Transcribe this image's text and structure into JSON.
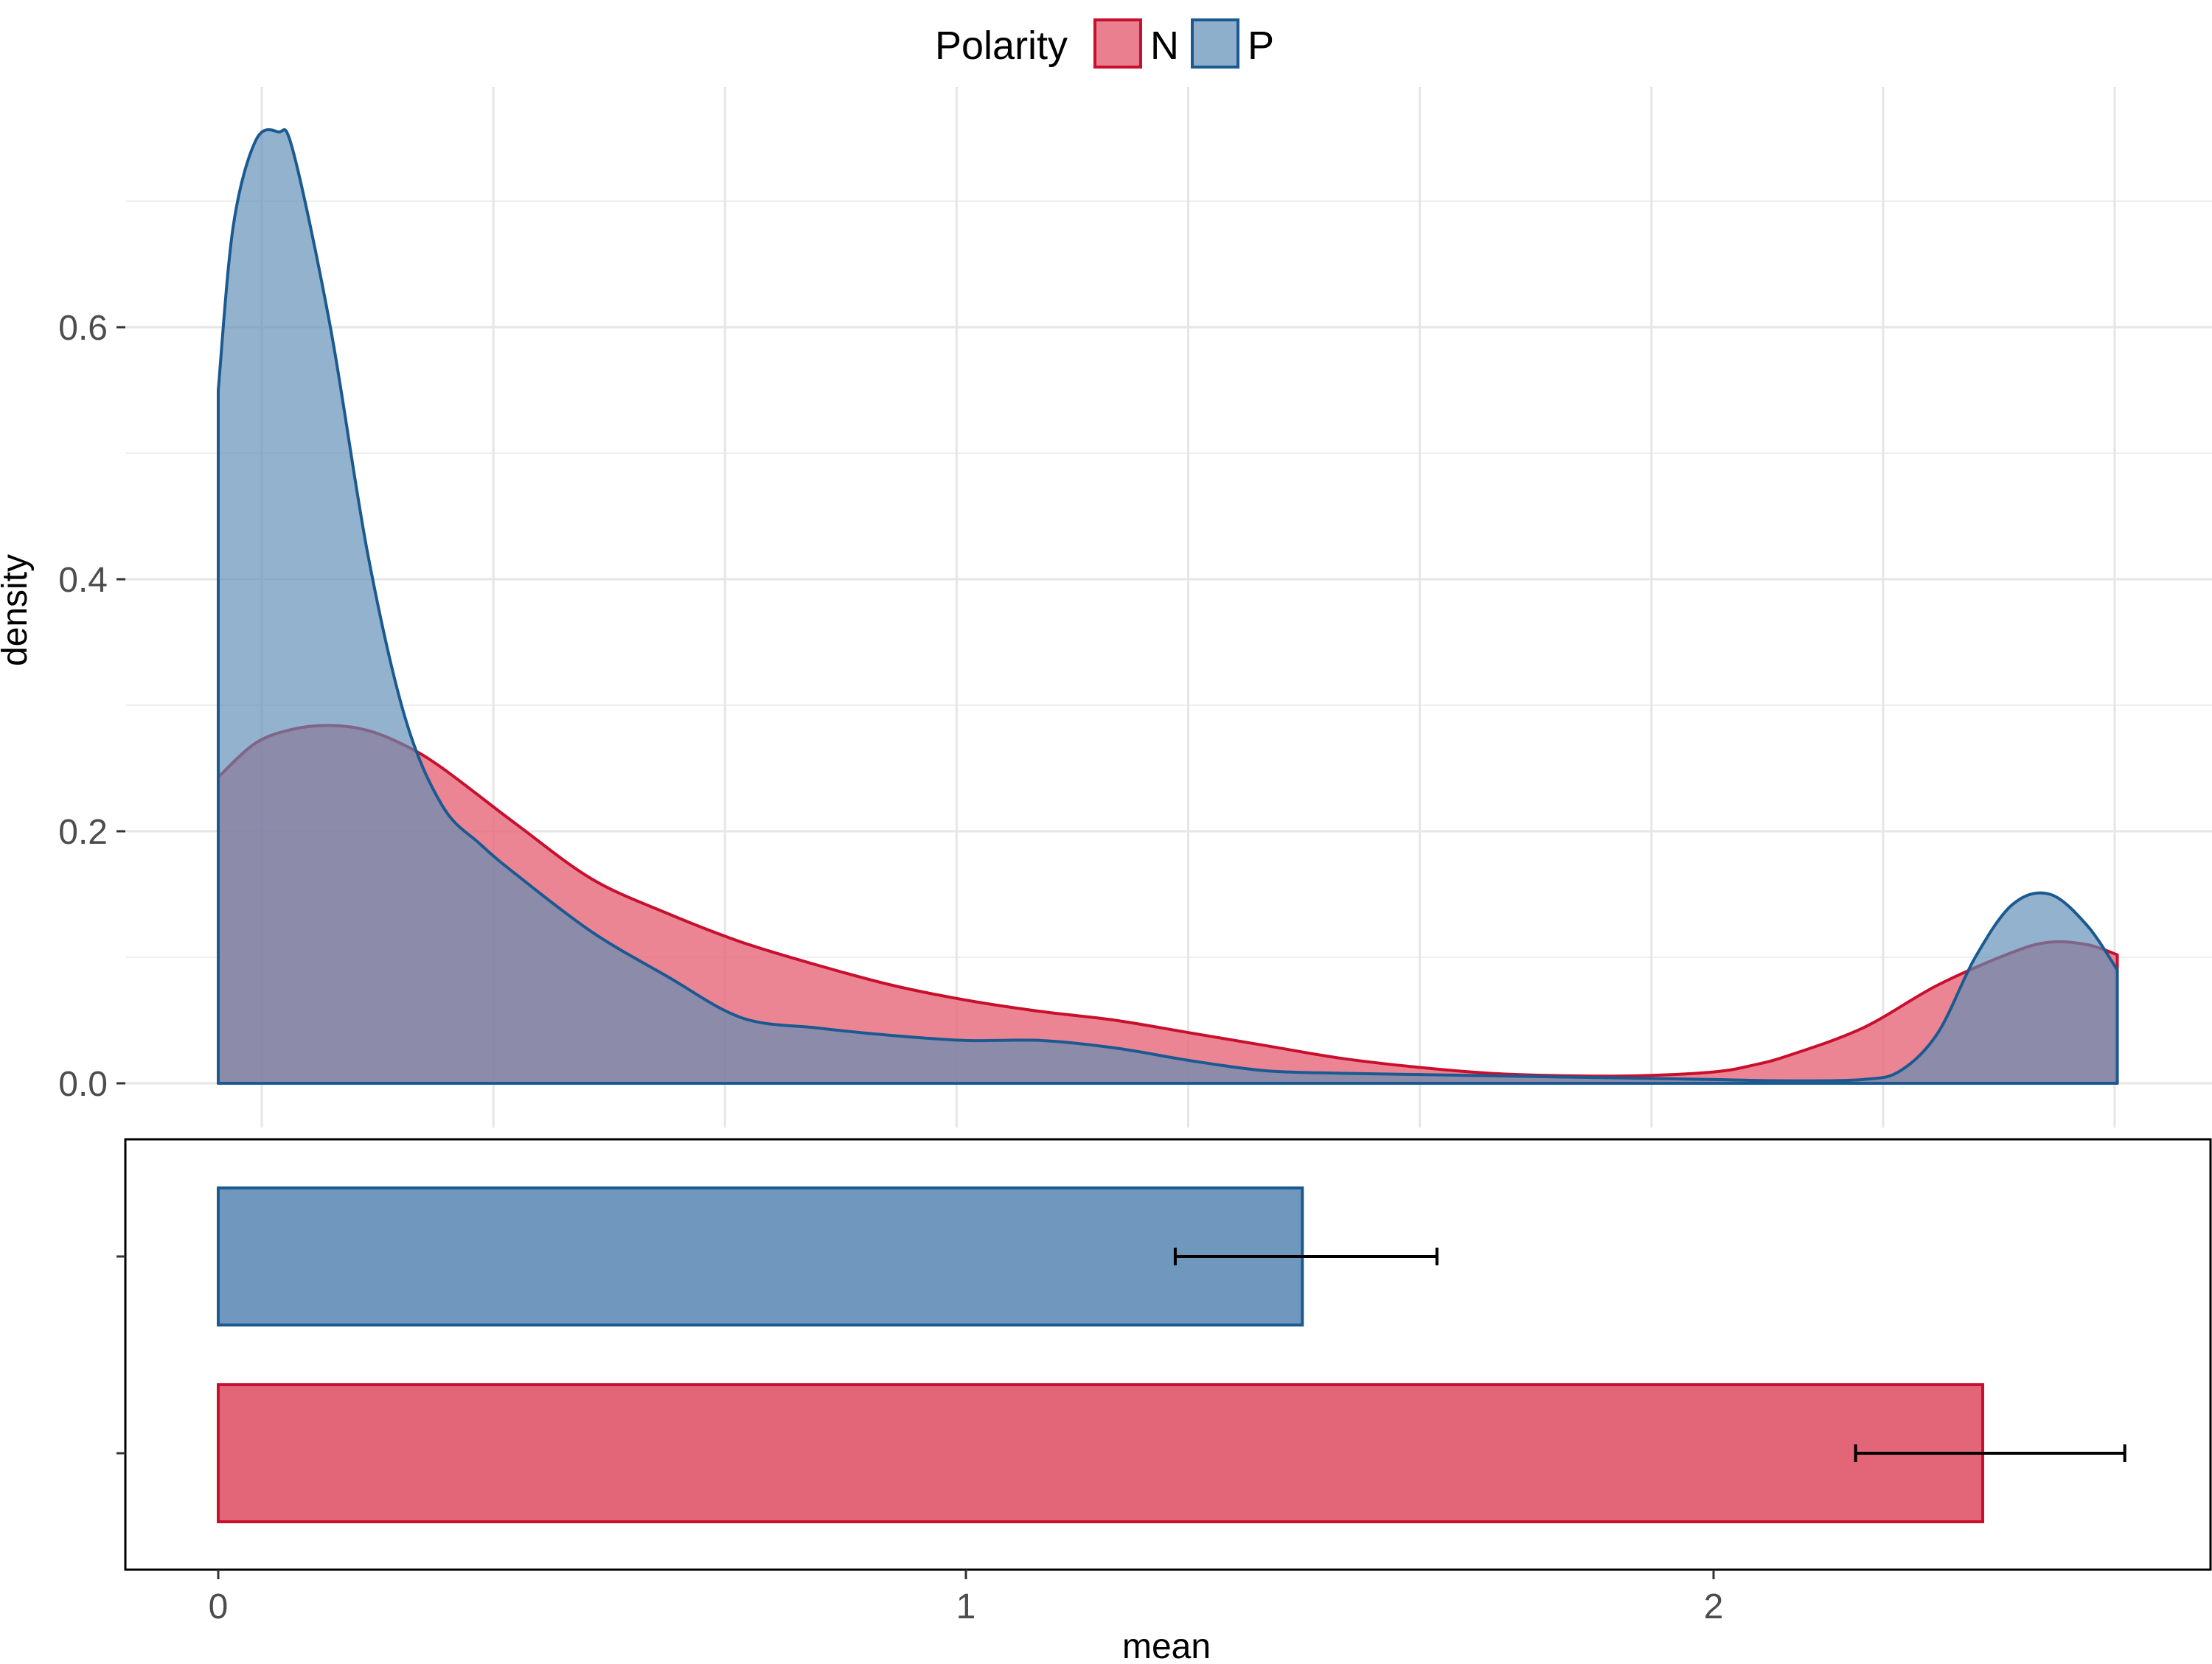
{
  "legend": {
    "title": "Polarity",
    "placement": "top",
    "items": [
      {
        "label": "N",
        "color": "#C8102E"
      },
      {
        "label": "P",
        "color": "#1B5A91"
      }
    ]
  },
  "chart_data": [
    {
      "type": "area",
      "title": "",
      "xlabel": "",
      "ylabel": "density",
      "xlim": [
        -0.02,
        2.57
      ],
      "ylim": [
        0,
        0.75
      ],
      "yticks": [
        0.0,
        0.2,
        0.4,
        0.6
      ],
      "ytick_labels": [
        "0.0",
        "0.2",
        "0.4",
        "0.6"
      ],
      "grid": true,
      "series": [
        {
          "name": "N",
          "color": "#C8102E",
          "fill": "#E66A7B",
          "x": [
            0,
            0.05,
            0.1,
            0.15,
            0.2,
            0.25,
            0.3,
            0.4,
            0.5,
            0.6,
            0.7,
            0.8,
            0.9,
            1.0,
            1.1,
            1.2,
            1.3,
            1.4,
            1.5,
            1.6,
            1.7,
            1.8,
            1.9,
            2.0,
            2.05,
            2.1,
            2.2,
            2.3,
            2.4,
            2.45,
            2.5,
            2.54
          ],
          "y": [
            0.243,
            0.27,
            0.281,
            0.284,
            0.28,
            0.268,
            0.25,
            0.205,
            0.162,
            0.135,
            0.112,
            0.094,
            0.078,
            0.066,
            0.057,
            0.05,
            0.04,
            0.03,
            0.02,
            0.013,
            0.008,
            0.006,
            0.006,
            0.009,
            0.014,
            0.022,
            0.044,
            0.078,
            0.104,
            0.112,
            0.11,
            0.102
          ]
        },
        {
          "name": "P",
          "color": "#1B5A91",
          "fill": "#5E8DB5",
          "x": [
            0,
            0.02,
            0.05,
            0.08,
            0.1,
            0.15,
            0.2,
            0.25,
            0.3,
            0.35,
            0.4,
            0.5,
            0.6,
            0.7,
            0.8,
            0.9,
            1.0,
            1.1,
            1.2,
            1.3,
            1.4,
            1.5,
            1.6,
            1.7,
            1.8,
            1.9,
            2.0,
            2.1,
            2.2,
            2.25,
            2.3,
            2.35,
            2.4,
            2.45,
            2.5,
            2.54
          ],
          "y": [
            0.55,
            0.68,
            0.748,
            0.755,
            0.74,
            0.6,
            0.42,
            0.29,
            0.22,
            0.19,
            0.165,
            0.12,
            0.085,
            0.052,
            0.044,
            0.038,
            0.034,
            0.034,
            0.028,
            0.018,
            0.01,
            0.008,
            0.007,
            0.006,
            0.005,
            0.004,
            0.003,
            0.002,
            0.003,
            0.01,
            0.04,
            0.1,
            0.142,
            0.15,
            0.125,
            0.09
          ]
        }
      ]
    },
    {
      "type": "bar",
      "orientation": "horizontal",
      "xlabel": "mean",
      "ylabel": "",
      "xlim": [
        -0.125,
        2.67
      ],
      "xticks": [
        0,
        1,
        2
      ],
      "xtick_labels": [
        "0",
        "1",
        "2"
      ],
      "grid": false,
      "bars": [
        {
          "name": "P",
          "value": 1.45,
          "error_low": 1.28,
          "error_high": 1.63,
          "color": "#1B5A91",
          "fill": "#7098BE"
        },
        {
          "name": "N",
          "value": 2.36,
          "error_low": 2.19,
          "error_high": 2.55,
          "color": "#C8102E",
          "fill": "#E26677"
        }
      ]
    }
  ]
}
